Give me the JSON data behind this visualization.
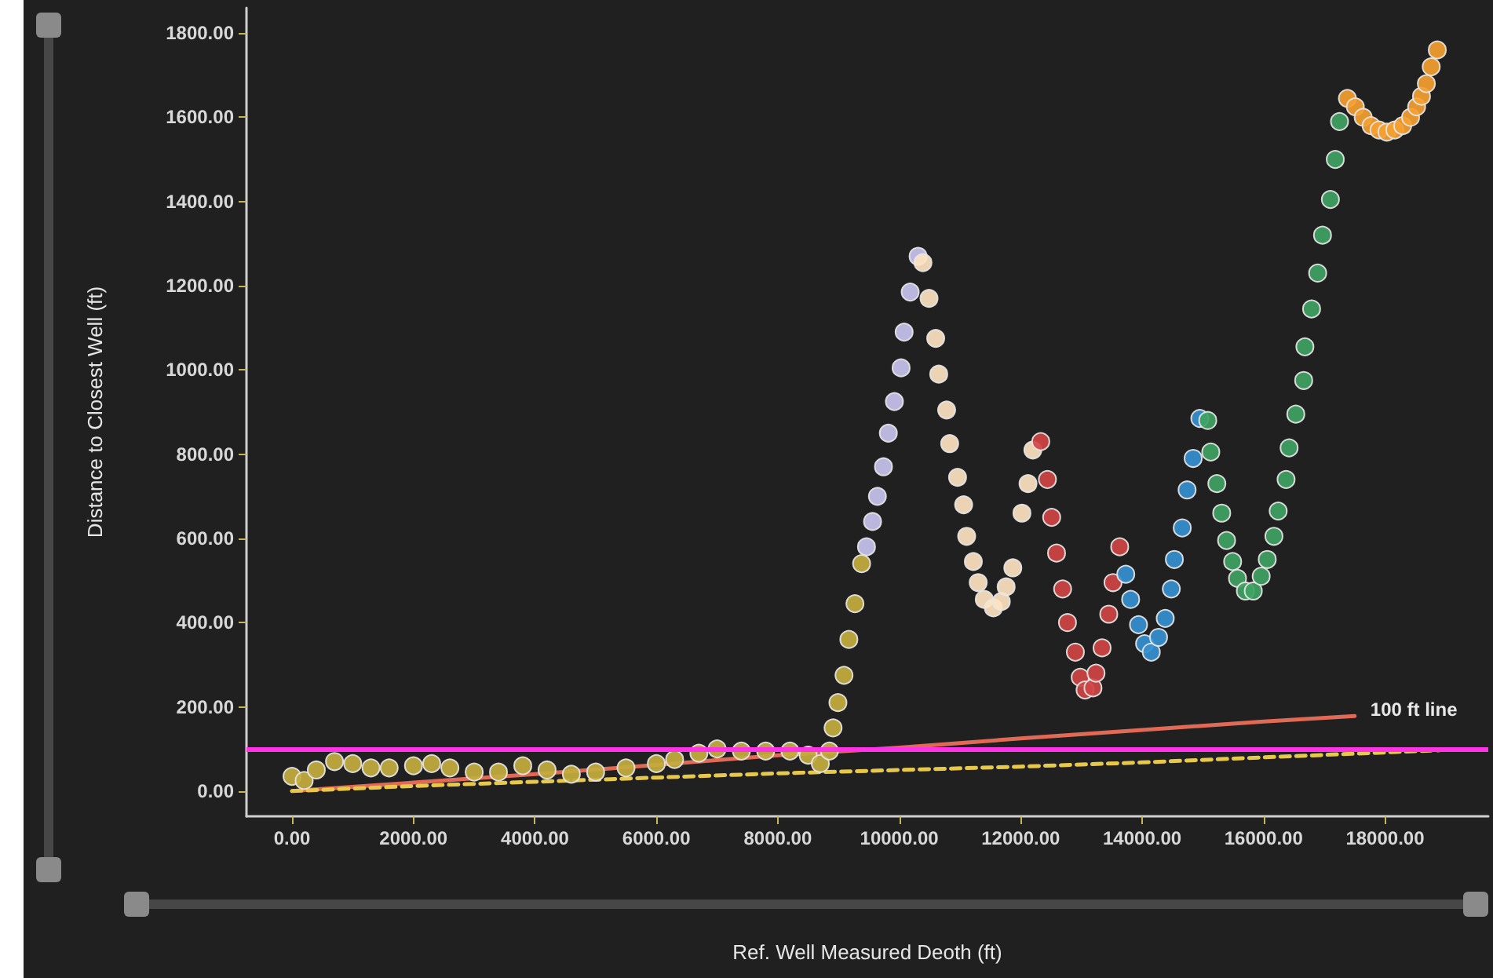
{
  "chart_data": {
    "type": "scatter",
    "xlabel": "Ref. Well Measured Deoth (ft)",
    "ylabel": "Distance to Closest Well (ft)",
    "xlim": [
      -750,
      19700
    ],
    "ylim": [
      -60,
      1860
    ],
    "xticks": [
      {
        "value": 0,
        "label": "0.00"
      },
      {
        "value": 2000,
        "label": "2000.00"
      },
      {
        "value": 4000,
        "label": "4000.00"
      },
      {
        "value": 6000,
        "label": "6000.00"
      },
      {
        "value": 8000,
        "label": "8000.00"
      },
      {
        "value": 10000,
        "label": "10000.00"
      },
      {
        "value": 12000,
        "label": "12000.00"
      },
      {
        "value": 14000,
        "label": "14000.00"
      },
      {
        "value": 16000,
        "label": "16000.00"
      },
      {
        "value": 18000,
        "label": "18000.00"
      }
    ],
    "yticks": [
      {
        "value": 0,
        "label": "0.00"
      },
      {
        "value": 200,
        "label": "200.00"
      },
      {
        "value": 400,
        "label": "400.00"
      },
      {
        "value": 600,
        "label": "600.00"
      },
      {
        "value": 800,
        "label": "800.00"
      },
      {
        "value": 1000,
        "label": "1000.00"
      },
      {
        "value": 1200,
        "label": "1200.00"
      },
      {
        "value": 1400,
        "label": "1400.00"
      },
      {
        "value": 1600,
        "label": "1600.00"
      },
      {
        "value": 1800,
        "label": "1800.00"
      }
    ],
    "grid": false,
    "legend": false,
    "marker": "circle",
    "ref_lines": [
      {
        "axis": "y",
        "value": 100,
        "color": "#ff33e6",
        "line_style": "solid"
      }
    ],
    "series": [
      {
        "type": "line",
        "name": "100 ft line",
        "color": "#e06a55",
        "marker": "none",
        "line_style": "solid",
        "x": [
          0,
          2000,
          4000,
          6000,
          8000,
          10000,
          12000,
          14000,
          16000,
          17500
        ],
        "values": [
          0,
          20,
          40,
          62,
          85,
          103,
          125,
          145,
          165,
          178
        ]
      },
      {
        "type": "line",
        "color": "#e8c84a",
        "marker": "none",
        "line_style": "dashed",
        "x": [
          0,
          2000,
          4000,
          6000,
          8000,
          10000,
          12000,
          14000,
          16000,
          18900
        ],
        "values": [
          0,
          12,
          22,
          32,
          42,
          50,
          58,
          68,
          80,
          97
        ]
      },
      {
        "color": "#c4ae3e",
        "x": [
          0,
          200,
          400,
          700,
          1000,
          1300,
          1600,
          2000,
          2300,
          2600,
          3000,
          3400,
          3800,
          4200,
          4600,
          5000,
          5500,
          6000,
          6300,
          6700,
          7000,
          7400,
          7800,
          8200,
          8500,
          8700,
          8850,
          8910,
          8990,
          9090,
          9170,
          9270,
          9380
        ],
        "values": [
          35,
          25,
          50,
          70,
          65,
          55,
          55,
          60,
          65,
          55,
          45,
          45,
          60,
          50,
          40,
          45,
          55,
          65,
          75,
          90,
          100,
          95,
          95,
          95,
          85,
          65,
          95,
          150,
          210,
          275,
          360,
          445,
          540
        ]
      },
      {
        "color": "#c9c3ee",
        "x": [
          9460,
          9560,
          9640,
          9740,
          9820,
          9920,
          10030,
          10080,
          10180,
          10310
        ],
        "values": [
          580,
          640,
          700,
          770,
          850,
          925,
          1005,
          1090,
          1185,
          1270
        ]
      },
      {
        "color": "#fde3c0",
        "x": [
          10390,
          10490,
          10600,
          10650,
          10780,
          10830,
          10960,
          11060,
          11110,
          11220,
          11300,
          11400,
          11550,
          11680,
          11760,
          11870,
          12020,
          12120,
          12200
        ],
        "values": [
          1255,
          1170,
          1075,
          990,
          905,
          825,
          745,
          680,
          605,
          545,
          495,
          455,
          435,
          450,
          485,
          530,
          660,
          730,
          810
        ]
      },
      {
        "color": "#d04545",
        "x": [
          12330,
          12440,
          12510,
          12590,
          12690,
          12770,
          12900,
          12980,
          13060,
          13190,
          13240,
          13340,
          13450,
          13520,
          13630
        ],
        "values": [
          830,
          740,
          650,
          565,
          480,
          400,
          330,
          270,
          240,
          245,
          280,
          340,
          420,
          495,
          580
        ]
      },
      {
        "color": "#3590d0",
        "x": [
          13730,
          13810,
          13940,
          14040,
          14150,
          14270,
          14380,
          14480,
          14530,
          14660,
          14740,
          14840,
          14950
        ],
        "values": [
          515,
          455,
          395,
          350,
          330,
          365,
          410,
          480,
          550,
          625,
          715,
          790,
          885
        ]
      },
      {
        "color": "#3fa363",
        "x": [
          15080,
          15130,
          15230,
          15310,
          15390,
          15490,
          15570,
          15700,
          15830,
          15960,
          16060,
          16170,
          16240,
          16370,
          16420,
          16530,
          16660,
          16680,
          16790,
          16890,
          16970,
          17100,
          17180,
          17250
        ],
        "values": [
          880,
          805,
          730,
          660,
          595,
          545,
          505,
          475,
          475,
          510,
          550,
          605,
          665,
          740,
          815,
          895,
          975,
          1055,
          1145,
          1230,
          1320,
          1405,
          1500,
          1590
        ]
      },
      {
        "color": "#f5a030",
        "x": [
          17380,
          17510,
          17640,
          17770,
          17900,
          18030,
          18160,
          18290,
          18420,
          18520,
          18600,
          18680,
          18760,
          18860
        ],
        "values": [
          1645,
          1625,
          1600,
          1580,
          1570,
          1565,
          1570,
          1580,
          1600,
          1625,
          1650,
          1680,
          1720,
          1760
        ]
      }
    ]
  }
}
